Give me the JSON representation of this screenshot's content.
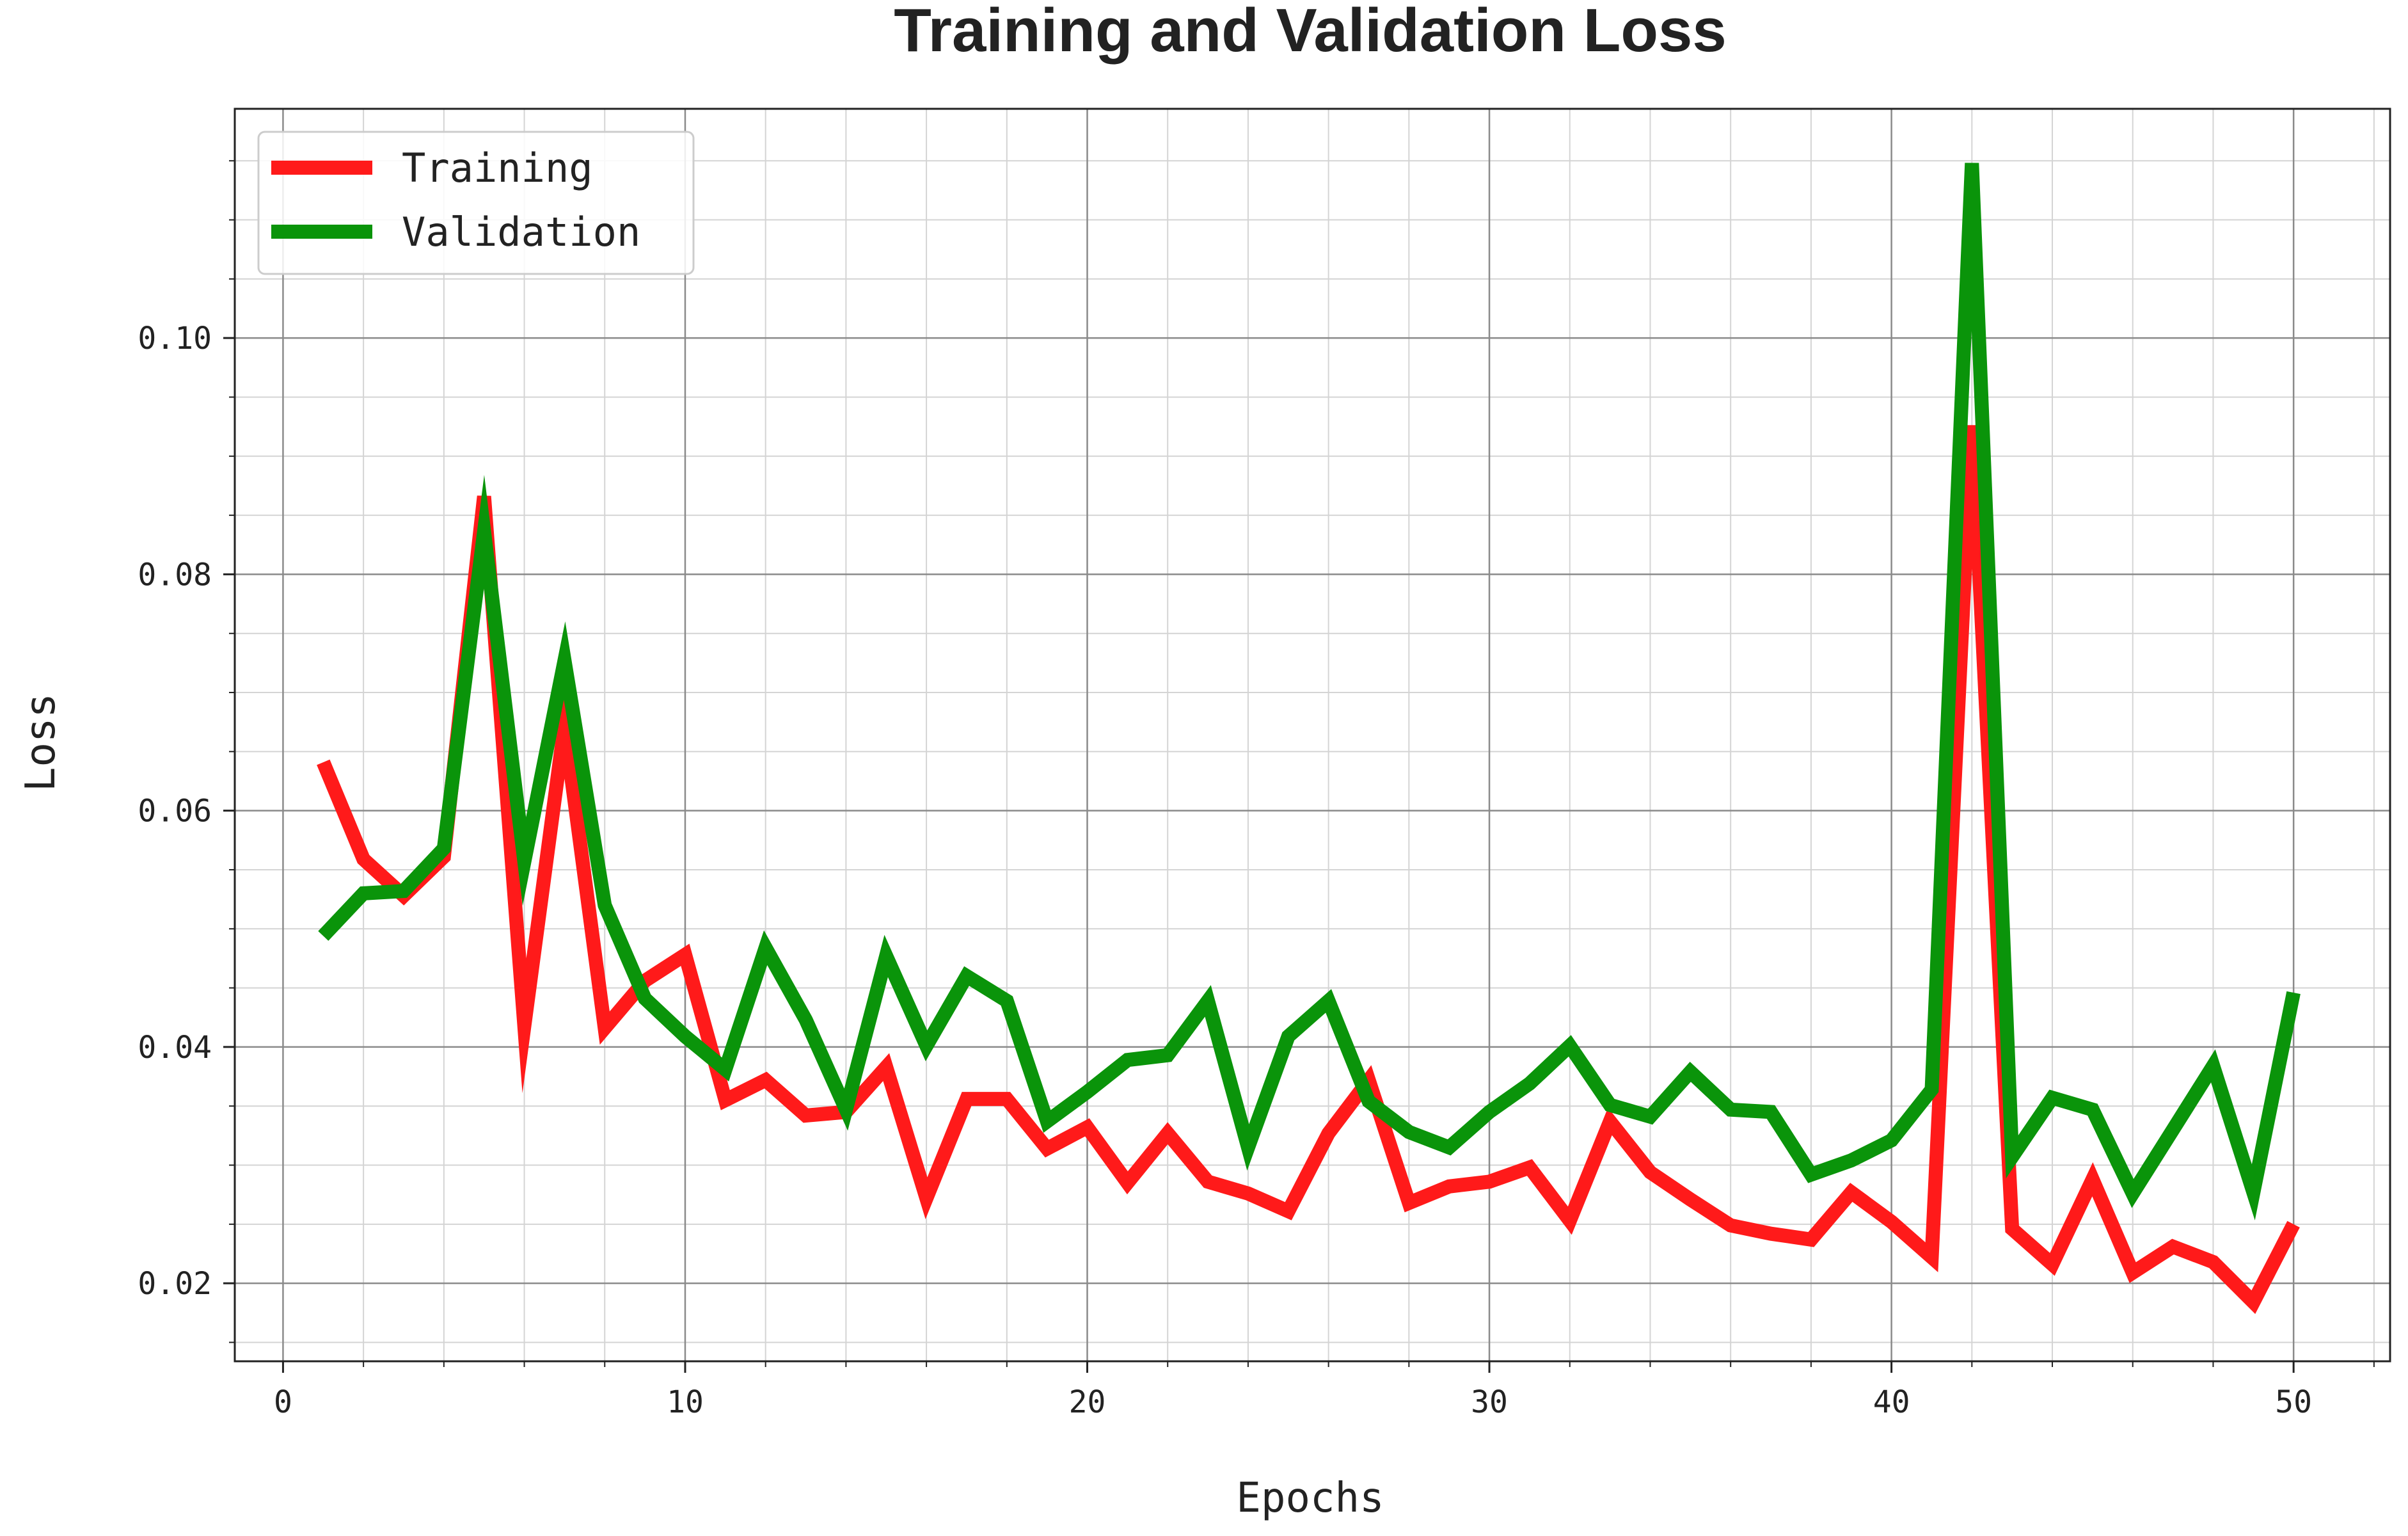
{
  "chart_data": {
    "type": "line",
    "title": "Training and Validation Loss",
    "xlabel": "Epochs",
    "ylabel": "Loss",
    "xlim": [
      -1.2,
      52.4
    ],
    "ylim": [
      0.0134,
      0.1194
    ],
    "x_ticks": [
      0,
      10,
      20,
      30,
      40,
      50
    ],
    "x_tick_labels": [
      "0",
      "10",
      "20",
      "30",
      "40",
      "50"
    ],
    "y_ticks": [
      0.02,
      0.04,
      0.06,
      0.08,
      0.1
    ],
    "y_tick_labels": [
      "0.02",
      "0.04",
      "0.06",
      "0.08",
      "0.10"
    ],
    "x_minor_step": 2,
    "y_minor_step": 0.005,
    "grid": true,
    "legend_position": "top-left",
    "x": [
      1,
      2,
      3,
      4,
      5,
      6,
      7,
      8,
      9,
      10,
      11,
      12,
      13,
      14,
      15,
      16,
      17,
      18,
      19,
      20,
      21,
      22,
      23,
      24,
      25,
      26,
      27,
      28,
      29,
      30,
      31,
      32,
      33,
      34,
      35,
      36,
      37,
      38,
      39,
      40,
      41,
      42,
      43,
      44,
      45,
      46,
      47,
      48,
      49,
      50
    ],
    "series": [
      {
        "name": "Training",
        "color": "#ff1a1a",
        "values": [
          0.0641,
          0.0559,
          0.0528,
          0.0561,
          0.0866,
          0.0418,
          0.0672,
          0.0416,
          0.0456,
          0.0478,
          0.0355,
          0.0372,
          0.0342,
          0.0345,
          0.0383,
          0.0272,
          0.0356,
          0.0356,
          0.0314,
          0.0332,
          0.0285,
          0.0327,
          0.0286,
          0.0276,
          0.0261,
          0.0327,
          0.0372,
          0.0268,
          0.0282,
          0.0286,
          0.0298,
          0.0253,
          0.0337,
          0.0294,
          0.0271,
          0.0249,
          0.0242,
          0.0237,
          0.0277,
          0.0252,
          0.0222,
          0.0926,
          0.0246,
          0.0216,
          0.0288,
          0.0209,
          0.0231,
          0.0218,
          0.0184,
          0.025
        ]
      },
      {
        "name": "Validation",
        "color": "#0a940a",
        "values": [
          0.0494,
          0.053,
          0.0532,
          0.0568,
          0.0836,
          0.0557,
          0.0727,
          0.052,
          0.0441,
          0.0409,
          0.0381,
          0.0484,
          0.0423,
          0.0347,
          0.0477,
          0.0401,
          0.046,
          0.0439,
          0.0337,
          0.0362,
          0.0389,
          0.0393,
          0.0439,
          0.0315,
          0.0409,
          0.0439,
          0.0354,
          0.0328,
          0.0315,
          0.0345,
          0.0369,
          0.0401,
          0.0351,
          0.0341,
          0.0379,
          0.0347,
          0.0345,
          0.0292,
          0.0304,
          0.0321,
          0.0364,
          0.1148,
          0.0307,
          0.0357,
          0.0347,
          0.0276,
          0.033,
          0.0384,
          0.0277,
          0.0446
        ]
      }
    ]
  }
}
